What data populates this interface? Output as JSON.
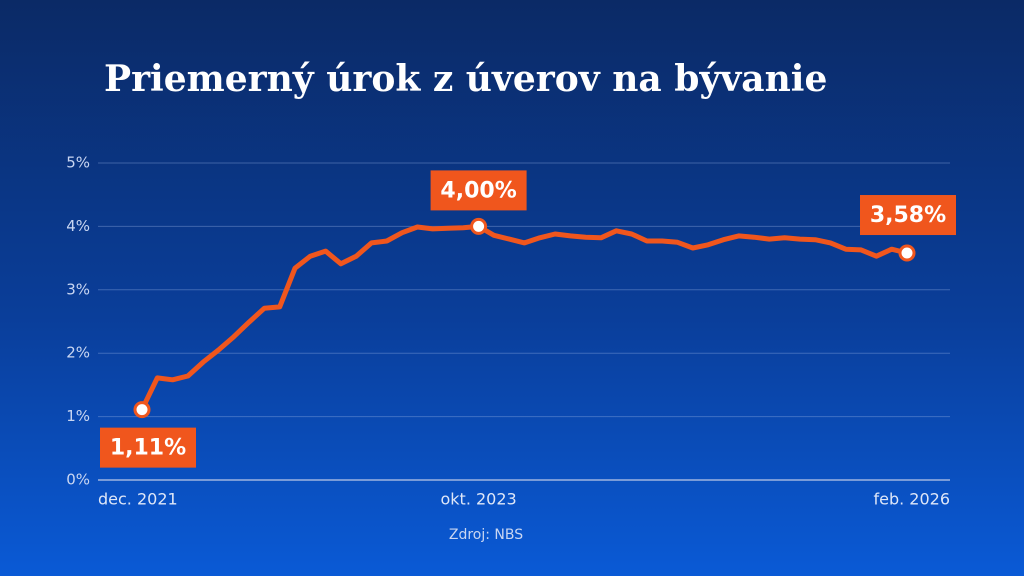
{
  "chart_data": {
    "type": "line",
    "title": "Priemerný úrok z úverov na bývanie",
    "source": "Zdroj: NBS",
    "categories": [
      "dec. 2021",
      null,
      null,
      null,
      null,
      null,
      null,
      null,
      null,
      null,
      null,
      null,
      null,
      null,
      null,
      null,
      null,
      null,
      null,
      null,
      null,
      null,
      "okt. 2023",
      null,
      null,
      null,
      null,
      null,
      null,
      null,
      null,
      null,
      null,
      null,
      null,
      null,
      null,
      null,
      null,
      null,
      null,
      null,
      null,
      null,
      null,
      null,
      null,
      null,
      null,
      null,
      "feb. 2026"
    ],
    "values": [
      1.11,
      1.61,
      1.58,
      1.64,
      1.86,
      2.05,
      2.26,
      2.49,
      2.71,
      2.73,
      3.34,
      3.53,
      3.61,
      3.41,
      3.53,
      3.74,
      3.77,
      3.9,
      3.99,
      3.96,
      3.97,
      3.98,
      4.0,
      3.86,
      3.8,
      3.74,
      3.82,
      3.88,
      3.85,
      3.83,
      3.82,
      3.93,
      3.88,
      3.77,
      3.77,
      3.75,
      3.66,
      3.71,
      3.79,
      3.85,
      3.83,
      3.8,
      3.82,
      3.8,
      3.79,
      3.74,
      3.64,
      3.63,
      3.53,
      3.64,
      3.58
    ],
    "value_labels": [
      "1,11%",
      null,
      null,
      null,
      null,
      null,
      null,
      null,
      null,
      null,
      null,
      null,
      null,
      null,
      null,
      null,
      null,
      null,
      null,
      null,
      null,
      null,
      "4,00%",
      null,
      null,
      null,
      null,
      null,
      null,
      null,
      null,
      null,
      null,
      null,
      null,
      null,
      null,
      null,
      null,
      null,
      null,
      null,
      null,
      null,
      null,
      null,
      null,
      null,
      null,
      null,
      "3,58%"
    ],
    "color": "#f0561d",
    "ylim": [
      0,
      5
    ],
    "yticks": [
      {
        "value": 0,
        "label": "0%"
      },
      {
        "value": 1,
        "label": "1%"
      },
      {
        "value": 2,
        "label": "2%"
      },
      {
        "value": 3,
        "label": "3%"
      },
      {
        "value": 4,
        "label": "4%"
      },
      {
        "value": 5,
        "label": "5%"
      }
    ],
    "grid": true
  }
}
